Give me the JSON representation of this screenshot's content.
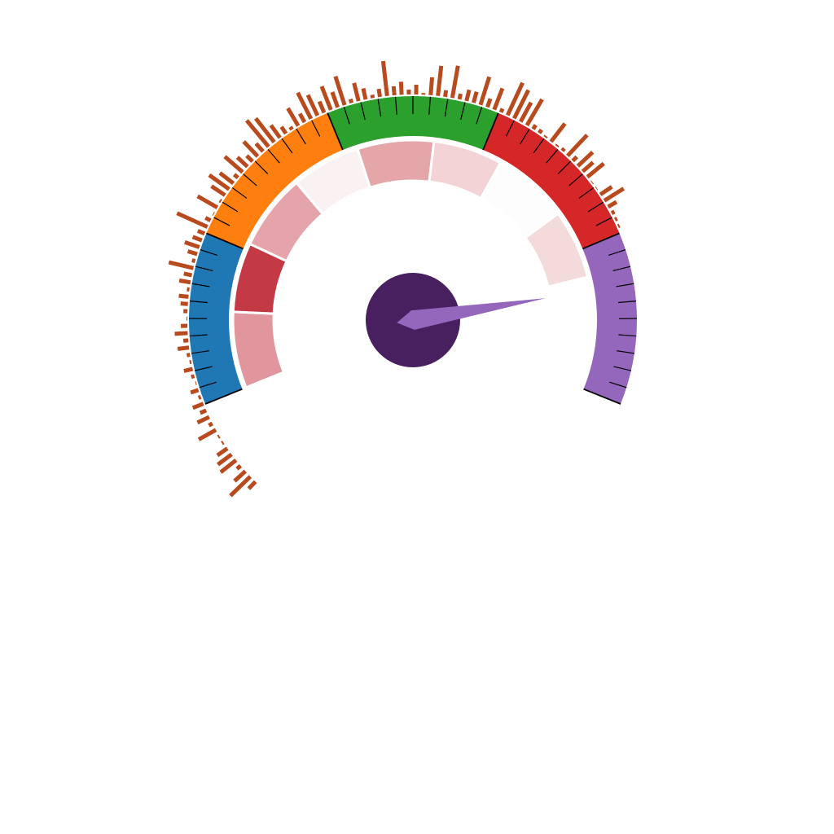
{
  "chart_data": {
    "type": "gauge",
    "scale": {
      "min": 0,
      "max": 100,
      "start_angle_deg": 202,
      "end_angle_deg": -22
    },
    "needle": {
      "value": 86,
      "color": "#9467bd"
    },
    "hub_color": "#482060",
    "bands": [
      {
        "from": 0,
        "to": 20,
        "color": "#1f77b4"
      },
      {
        "from": 20,
        "to": 40,
        "color": "#ff7f0e"
      },
      {
        "from": 40,
        "to": 60,
        "color": "#2ca02c"
      },
      {
        "from": 60,
        "to": 80,
        "color": "#d62728"
      },
      {
        "from": 80,
        "to": 100,
        "color": "#9467bd"
      }
    ],
    "inner_segments": [
      {
        "from": 0,
        "to": 11,
        "color": "#e0969c"
      },
      {
        "from": 11,
        "to": 21,
        "color": "#c33a45"
      },
      {
        "from": 21,
        "to": 32,
        "color": "#e5a4a9"
      },
      {
        "from": 32,
        "to": 42,
        "color": "#faf2f2"
      },
      {
        "from": 42,
        "to": 53,
        "color": "#e5a6a9"
      },
      {
        "from": 53,
        "to": 63,
        "color": "#f4d3d6"
      },
      {
        "from": 63,
        "to": 74,
        "color": "#fefdfd"
      },
      {
        "from": 74,
        "to": 84,
        "color": "#f3dbdc"
      }
    ],
    "ticks": {
      "major_step": 20,
      "minor_step": 2,
      "color": "#000000"
    },
    "outer_bars": {
      "color": "#b84a1e",
      "count": 110,
      "from": -10.6,
      "to": 79.2,
      "values": [
        16,
        38,
        22,
        10,
        28,
        25,
        19,
        6,
        3,
        28,
        9,
        20,
        12,
        18,
        7,
        14,
        5,
        8,
        15,
        3,
        8,
        18,
        10,
        20,
        12,
        5,
        9,
        13,
        16,
        7,
        18,
        14,
        35,
        8,
        16,
        23,
        16,
        13,
        45,
        11,
        5,
        32,
        6,
        24,
        34,
        25,
        10,
        33,
        21,
        14,
        29,
        17,
        46,
        41,
        23,
        14,
        8,
        29,
        16,
        40,
        32,
        19,
        35,
        24,
        41,
        9,
        27,
        18,
        8,
        14,
        47,
        15,
        20,
        10,
        16,
        6,
        26,
        41,
        12,
        44,
        11,
        18,
        18,
        40,
        15,
        32,
        9,
        48,
        43,
        31,
        41,
        10,
        9,
        6,
        32,
        4,
        8,
        39,
        11,
        29,
        21,
        30,
        5,
        5,
        21,
        32,
        16,
        8,
        7,
        3
      ]
    }
  }
}
